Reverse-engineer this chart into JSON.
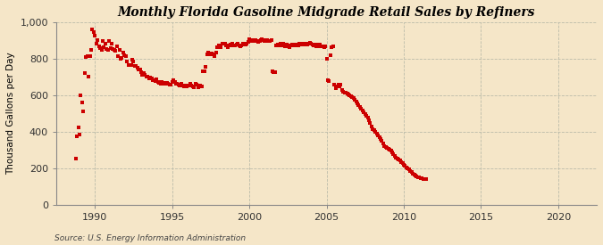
{
  "title": "Monthly Florida Gasoline Midgrade Retail Sales by Refiners",
  "ylabel": "Thousand Gallons per Day",
  "source": "Source: U.S. Energy Information Administration",
  "background_color": "#f5e6c8",
  "dot_color": "#cc0000",
  "ylim": [
    0,
    1000
  ],
  "yticks": [
    0,
    200,
    400,
    600,
    800,
    1000
  ],
  "ytick_labels": [
    "0",
    "200",
    "400",
    "600",
    "800",
    "1,000"
  ],
  "xlim_start": 1987.5,
  "xlim_end": 2022.5,
  "xticks": [
    1990,
    1995,
    2000,
    2005,
    2010,
    2015,
    2020
  ],
  "data": [
    [
      1988.75,
      255
    ],
    [
      1988.83,
      375
    ],
    [
      1988.92,
      425
    ],
    [
      1989.0,
      385
    ],
    [
      1989.08,
      600
    ],
    [
      1989.17,
      560
    ],
    [
      1989.25,
      510
    ],
    [
      1989.33,
      720
    ],
    [
      1989.42,
      810
    ],
    [
      1989.5,
      815
    ],
    [
      1989.58,
      700
    ],
    [
      1989.67,
      815
    ],
    [
      1989.75,
      850
    ],
    [
      1989.83,
      960
    ],
    [
      1989.92,
      945
    ],
    [
      1990.0,
      925
    ],
    [
      1990.08,
      880
    ],
    [
      1990.17,
      900
    ],
    [
      1990.25,
      870
    ],
    [
      1990.33,
      860
    ],
    [
      1990.42,
      850
    ],
    [
      1990.5,
      895
    ],
    [
      1990.58,
      865
    ],
    [
      1990.67,
      880
    ],
    [
      1990.75,
      855
    ],
    [
      1990.83,
      850
    ],
    [
      1990.92,
      895
    ],
    [
      1991.0,
      860
    ],
    [
      1991.08,
      880
    ],
    [
      1991.17,
      855
    ],
    [
      1991.25,
      850
    ],
    [
      1991.33,
      845
    ],
    [
      1991.42,
      870
    ],
    [
      1991.5,
      815
    ],
    [
      1991.58,
      850
    ],
    [
      1991.67,
      800
    ],
    [
      1991.75,
      805
    ],
    [
      1991.83,
      835
    ],
    [
      1991.92,
      820
    ],
    [
      1992.0,
      815
    ],
    [
      1992.08,
      785
    ],
    [
      1992.17,
      765
    ],
    [
      1992.25,
      765
    ],
    [
      1992.33,
      765
    ],
    [
      1992.42,
      795
    ],
    [
      1992.5,
      785
    ],
    [
      1992.58,
      762
    ],
    [
      1992.67,
      762
    ],
    [
      1992.75,
      752
    ],
    [
      1992.83,
      742
    ],
    [
      1992.92,
      742
    ],
    [
      1993.0,
      725
    ],
    [
      1993.08,
      712
    ],
    [
      1993.17,
      722
    ],
    [
      1993.25,
      712
    ],
    [
      1993.33,
      700
    ],
    [
      1993.42,
      700
    ],
    [
      1993.5,
      692
    ],
    [
      1993.58,
      698
    ],
    [
      1993.67,
      692
    ],
    [
      1993.75,
      682
    ],
    [
      1993.83,
      682
    ],
    [
      1993.92,
      678
    ],
    [
      1994.0,
      685
    ],
    [
      1994.08,
      673
    ],
    [
      1994.17,
      668
    ],
    [
      1994.25,
      663
    ],
    [
      1994.33,
      673
    ],
    [
      1994.42,
      663
    ],
    [
      1994.5,
      668
    ],
    [
      1994.58,
      663
    ],
    [
      1994.67,
      668
    ],
    [
      1994.75,
      665
    ],
    [
      1994.83,
      660
    ],
    [
      1994.92,
      658
    ],
    [
      1995.0,
      672
    ],
    [
      1995.08,
      682
    ],
    [
      1995.17,
      672
    ],
    [
      1995.25,
      662
    ],
    [
      1995.33,
      662
    ],
    [
      1995.42,
      658
    ],
    [
      1995.5,
      652
    ],
    [
      1995.58,
      662
    ],
    [
      1995.67,
      652
    ],
    [
      1995.75,
      648
    ],
    [
      1995.83,
      652
    ],
    [
      1995.92,
      648
    ],
    [
      1996.0,
      652
    ],
    [
      1996.08,
      652
    ],
    [
      1996.17,
      662
    ],
    [
      1996.25,
      652
    ],
    [
      1996.33,
      648
    ],
    [
      1996.42,
      642
    ],
    [
      1996.5,
      662
    ],
    [
      1996.58,
      658
    ],
    [
      1996.67,
      642
    ],
    [
      1996.75,
      652
    ],
    [
      1996.83,
      655
    ],
    [
      1996.92,
      650
    ],
    [
      1997.0,
      732
    ],
    [
      1997.08,
      732
    ],
    [
      1997.17,
      757
    ],
    [
      1997.25,
      822
    ],
    [
      1997.33,
      832
    ],
    [
      1997.42,
      822
    ],
    [
      1997.5,
      822
    ],
    [
      1997.58,
      827
    ],
    [
      1997.67,
      822
    ],
    [
      1997.75,
      812
    ],
    [
      1997.83,
      832
    ],
    [
      1997.92,
      862
    ],
    [
      1998.0,
      872
    ],
    [
      1998.08,
      867
    ],
    [
      1998.17,
      862
    ],
    [
      1998.25,
      882
    ],
    [
      1998.33,
      882
    ],
    [
      1998.42,
      882
    ],
    [
      1998.5,
      872
    ],
    [
      1998.58,
      862
    ],
    [
      1998.67,
      872
    ],
    [
      1998.75,
      877
    ],
    [
      1998.83,
      872
    ],
    [
      1998.92,
      882
    ],
    [
      1999.0,
      872
    ],
    [
      1999.08,
      872
    ],
    [
      1999.17,
      877
    ],
    [
      1999.25,
      882
    ],
    [
      1999.33,
      875
    ],
    [
      1999.42,
      870
    ],
    [
      1999.5,
      872
    ],
    [
      1999.58,
      880
    ],
    [
      1999.67,
      877
    ],
    [
      1999.75,
      877
    ],
    [
      1999.83,
      882
    ],
    [
      1999.92,
      890
    ],
    [
      2000.0,
      905
    ],
    [
      2000.08,
      900
    ],
    [
      2000.17,
      895
    ],
    [
      2000.25,
      900
    ],
    [
      2000.33,
      895
    ],
    [
      2000.42,
      900
    ],
    [
      2000.5,
      895
    ],
    [
      2000.58,
      890
    ],
    [
      2000.67,
      895
    ],
    [
      2000.75,
      900
    ],
    [
      2000.83,
      905
    ],
    [
      2000.92,
      900
    ],
    [
      2001.0,
      895
    ],
    [
      2001.08,
      895
    ],
    [
      2001.17,
      900
    ],
    [
      2001.25,
      895
    ],
    [
      2001.33,
      895
    ],
    [
      2001.42,
      900
    ],
    [
      2001.5,
      730
    ],
    [
      2001.58,
      728
    ],
    [
      2001.67,
      726
    ],
    [
      2001.75,
      872
    ],
    [
      2001.83,
      877
    ],
    [
      2001.92,
      875
    ],
    [
      2002.0,
      880
    ],
    [
      2002.08,
      875
    ],
    [
      2002.17,
      880
    ],
    [
      2002.25,
      877
    ],
    [
      2002.33,
      870
    ],
    [
      2002.42,
      877
    ],
    [
      2002.5,
      867
    ],
    [
      2002.58,
      862
    ],
    [
      2002.67,
      872
    ],
    [
      2002.75,
      877
    ],
    [
      2002.83,
      872
    ],
    [
      2002.92,
      877
    ],
    [
      2003.0,
      872
    ],
    [
      2003.08,
      877
    ],
    [
      2003.17,
      872
    ],
    [
      2003.25,
      882
    ],
    [
      2003.33,
      882
    ],
    [
      2003.42,
      877
    ],
    [
      2003.5,
      882
    ],
    [
      2003.58,
      877
    ],
    [
      2003.67,
      882
    ],
    [
      2003.75,
      877
    ],
    [
      2003.83,
      882
    ],
    [
      2003.92,
      887
    ],
    [
      2004.0,
      882
    ],
    [
      2004.08,
      877
    ],
    [
      2004.17,
      872
    ],
    [
      2004.25,
      877
    ],
    [
      2004.33,
      870
    ],
    [
      2004.42,
      877
    ],
    [
      2004.5,
      870
    ],
    [
      2004.58,
      877
    ],
    [
      2004.67,
      870
    ],
    [
      2004.75,
      870
    ],
    [
      2004.83,
      865
    ],
    [
      2004.92,
      870
    ],
    [
      2005.0,
      800
    ],
    [
      2005.08,
      680
    ],
    [
      2005.17,
      675
    ],
    [
      2005.25,
      820
    ],
    [
      2005.33,
      865
    ],
    [
      2005.42,
      870
    ],
    [
      2005.5,
      660
    ],
    [
      2005.58,
      640
    ],
    [
      2005.67,
      650
    ],
    [
      2005.75,
      660
    ],
    [
      2005.83,
      650
    ],
    [
      2005.92,
      660
    ],
    [
      2006.0,
      630
    ],
    [
      2006.08,
      620
    ],
    [
      2006.17,
      615
    ],
    [
      2006.25,
      615
    ],
    [
      2006.33,
      610
    ],
    [
      2006.42,
      605
    ],
    [
      2006.5,
      600
    ],
    [
      2006.58,
      595
    ],
    [
      2006.67,
      590
    ],
    [
      2006.75,
      585
    ],
    [
      2006.83,
      575
    ],
    [
      2006.92,
      565
    ],
    [
      2007.0,
      555
    ],
    [
      2007.08,
      545
    ],
    [
      2007.17,
      535
    ],
    [
      2007.25,
      525
    ],
    [
      2007.33,
      515
    ],
    [
      2007.42,
      505
    ],
    [
      2007.5,
      495
    ],
    [
      2007.58,
      485
    ],
    [
      2007.67,
      475
    ],
    [
      2007.75,
      465
    ],
    [
      2007.83,
      450
    ],
    [
      2007.92,
      430
    ],
    [
      2008.0,
      415
    ],
    [
      2008.08,
      408
    ],
    [
      2008.17,
      400
    ],
    [
      2008.25,
      390
    ],
    [
      2008.33,
      380
    ],
    [
      2008.42,
      370
    ],
    [
      2008.5,
      360
    ],
    [
      2008.58,
      348
    ],
    [
      2008.67,
      335
    ],
    [
      2008.75,
      320
    ],
    [
      2008.83,
      315
    ],
    [
      2008.92,
      310
    ],
    [
      2009.0,
      305
    ],
    [
      2009.08,
      300
    ],
    [
      2009.17,
      295
    ],
    [
      2009.25,
      285
    ],
    [
      2009.33,
      275
    ],
    [
      2009.42,
      268
    ],
    [
      2009.5,
      260
    ],
    [
      2009.58,
      255
    ],
    [
      2009.67,
      248
    ],
    [
      2009.75,
      242
    ],
    [
      2009.83,
      235
    ],
    [
      2009.92,
      228
    ],
    [
      2010.0,
      220
    ],
    [
      2010.08,
      212
    ],
    [
      2010.17,
      205
    ],
    [
      2010.25,
      198
    ],
    [
      2010.33,
      192
    ],
    [
      2010.42,
      185
    ],
    [
      2010.5,
      178
    ],
    [
      2010.58,
      172
    ],
    [
      2010.67,
      165
    ],
    [
      2010.75,
      160
    ],
    [
      2010.83,
      155
    ],
    [
      2010.92,
      150
    ],
    [
      2011.0,
      148
    ],
    [
      2011.08,
      145
    ],
    [
      2011.17,
      143
    ],
    [
      2011.25,
      142
    ],
    [
      2011.33,
      140
    ],
    [
      2011.42,
      140
    ]
  ]
}
